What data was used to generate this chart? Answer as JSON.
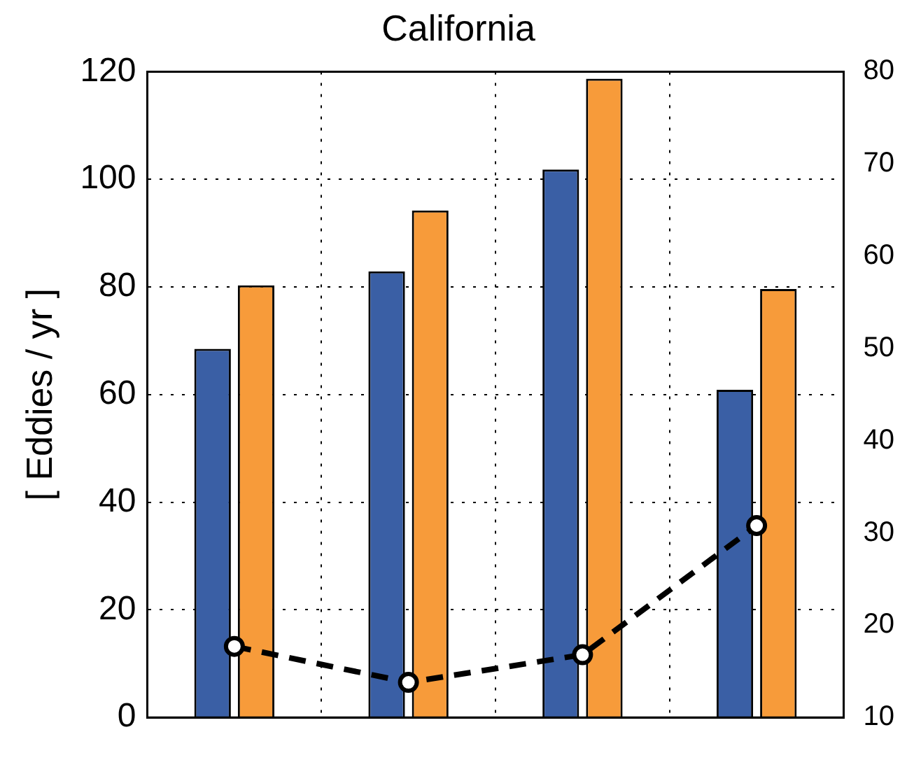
{
  "chart_data": {
    "type": "bar",
    "title": "California",
    "ylabel": "[ Eddies / yr ]",
    "categories": [
      null,
      null,
      null,
      null
    ],
    "series": [
      {
        "color": "#3a5fa5",
        "values": [
          68.5,
          82.9,
          101.8,
          60.9
        ]
      },
      {
        "color": "#f79b3a",
        "values": [
          80.3,
          94.2,
          118.7,
          79.6
        ]
      },
      {
        "type": "line",
        "axis": "y2",
        "color": "#000000",
        "marker": "circle",
        "line_style": "dashed",
        "values": [
          17.7,
          13.8,
          16.8,
          30.8
        ]
      }
    ],
    "ylim": [
      0,
      120
    ],
    "yticks": [
      0,
      20,
      40,
      60,
      80,
      100,
      120
    ],
    "y2lim": [
      10,
      80
    ],
    "y2ticks": [
      10,
      20,
      30,
      40,
      50,
      60,
      70,
      80
    ],
    "grid": true,
    "legend": false
  }
}
